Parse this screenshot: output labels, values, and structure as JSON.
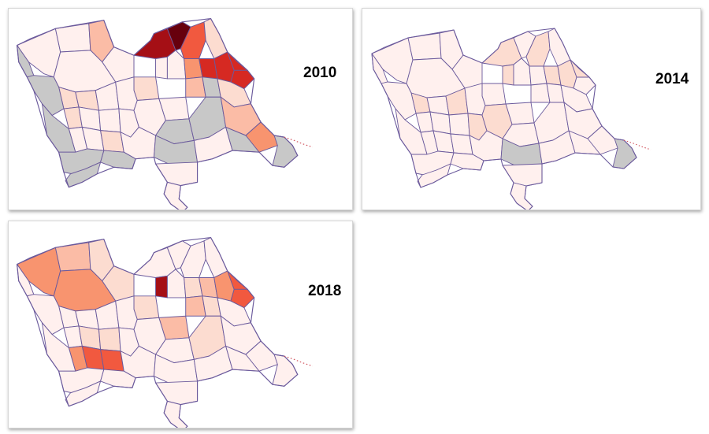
{
  "colors": {
    "scale": [
      "#fff0ee",
      "#fcdcd0",
      "#fbbca6",
      "#f8946f",
      "#f1593f",
      "#d62922",
      "#a50f15",
      "#67000d"
    ],
    "no_data": "#c8c8c8",
    "border": "#6b5a9c",
    "coast": "#d0505a"
  },
  "maps": [
    {
      "year": "2010",
      "no_data_counties": [
        "nw-sliver",
        "west-coast-a",
        "west-coast-b",
        "south-strip-a",
        "south-strip-b",
        "south-strip-c",
        "c7",
        "d6",
        "d7",
        "e5",
        "e7",
        "east-tip"
      ],
      "shading": {
        "a3": 2,
        "a5": 6,
        "a6": 7,
        "a7": 4,
        "a8": 1,
        "b2": 1,
        "b5": 3,
        "b6": 5,
        "b7": 5,
        "b8": 5,
        "b9": 5,
        "c1": 1,
        "c2": 1,
        "c6": 2,
        "c8": 1,
        "d1": 1,
        "d8": 2,
        "e3": 1,
        "e8": 3
      }
    },
    {
      "year": "2014",
      "no_data_counties": [
        "e5",
        "east-tip"
      ],
      "shading": {
        "a5": 1,
        "a7": 1,
        "b3": 1,
        "b6": 1,
        "b7": 1,
        "b8": 1,
        "c1": 1,
        "c3": 1,
        "d4": 1,
        "d5": 1
      }
    },
    {
      "year": "2018",
      "no_data_counties": [],
      "shading": {
        "a1": 3,
        "a2": 2,
        "a3": 1,
        "a4": 1,
        "b1": 3,
        "b2": 1,
        "b3": 6,
        "b5": 1,
        "b6": 2,
        "b7": 3,
        "b8": 4,
        "b9": 4,
        "c5": 2,
        "c6": 2,
        "c7": 1,
        "d2": 1,
        "d3": 1,
        "d7": 1,
        "e1": 3,
        "e2": 4,
        "e3": 4
      }
    }
  ]
}
